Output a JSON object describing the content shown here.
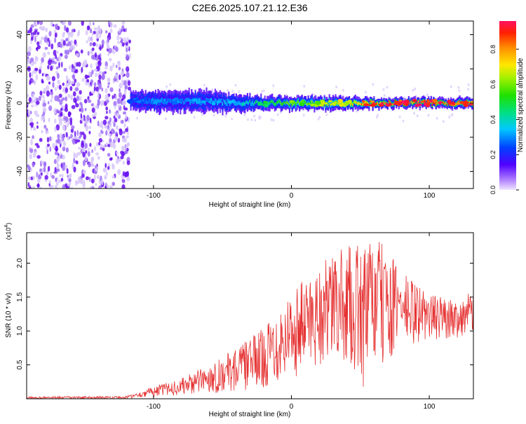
{
  "title": "C2E6.2025.107.21.12.E36",
  "colors": {
    "snr_line": "#e53030",
    "frame": "#000000",
    "noise": "#6a10f0"
  },
  "chart_data": [
    {
      "type": "heatmap",
      "xlabel": "Height of straight line (km)",
      "ylabel": "Frequency (Hz)",
      "xlim": [
        -192,
        132
      ],
      "ylim": [
        -50,
        48
      ],
      "xticks": [
        -100,
        0,
        100
      ],
      "yticks": [
        -40,
        -20,
        0,
        20,
        40
      ],
      "noise_region_x": [
        -192,
        -117
      ],
      "signal": [
        {
          "x": -118,
          "center": 2,
          "halfwidth": 5,
          "peak": 0.25
        },
        {
          "x": -100,
          "center": 1,
          "halfwidth": 6,
          "peak": 0.3
        },
        {
          "x": -60,
          "center": 1,
          "halfwidth": 6,
          "peak": 0.32
        },
        {
          "x": -40,
          "center": 0,
          "halfwidth": 5,
          "peak": 0.35
        },
        {
          "x": -20,
          "center": 0,
          "halfwidth": 4,
          "peak": 0.5
        },
        {
          "x": 0,
          "center": 0,
          "halfwidth": 4,
          "peak": 0.6
        },
        {
          "x": 40,
          "center": 0,
          "halfwidth": 4,
          "peak": 0.7
        },
        {
          "x": 60,
          "center": 0,
          "halfwidth": 3,
          "peak": 0.9
        },
        {
          "x": 100,
          "center": 0,
          "halfwidth": 3,
          "peak": 0.95
        },
        {
          "x": 132,
          "center": 0,
          "halfwidth": 3,
          "peak": 0.9
        }
      ],
      "colorbar": {
        "label": "Normalized spectral amplitude",
        "ticks": [
          "0.0",
          "0.2",
          "0.4",
          "0.6",
          "0.8"
        ],
        "range": [
          0,
          0.96
        ],
        "colormap": "rainbow"
      }
    },
    {
      "type": "line",
      "xlabel": "Height of straight line (km)",
      "ylabel": "SNR (10 * v/v)",
      "scale_label_prefix": "(x10",
      "scale_label_exponent": "4",
      "scale_label_suffix": ")",
      "xlim": [
        -192,
        132
      ],
      "ylim": [
        0,
        2.45
      ],
      "xticks": [
        -100,
        0,
        100
      ],
      "yticks": [
        "0.5",
        "1.0",
        "1.5",
        "2.0"
      ],
      "envelope": {
        "x": [
          -192,
          -120,
          -110,
          -100,
          -80,
          -60,
          -40,
          -20,
          0,
          20,
          40,
          55,
          60,
          80,
          100,
          120,
          132
        ],
        "upper": [
          0.03,
          0.04,
          0.1,
          0.18,
          0.3,
          0.5,
          0.75,
          1.05,
          1.6,
          2.0,
          2.25,
          2.3,
          2.45,
          1.9,
          1.55,
          1.45,
          1.6
        ],
        "lower": [
          0.0,
          0.0,
          0.02,
          0.03,
          0.05,
          0.08,
          0.1,
          0.15,
          0.3,
          0.45,
          0.5,
          0.05,
          0.3,
          0.7,
          0.85,
          0.9,
          0.9
        ]
      }
    }
  ]
}
